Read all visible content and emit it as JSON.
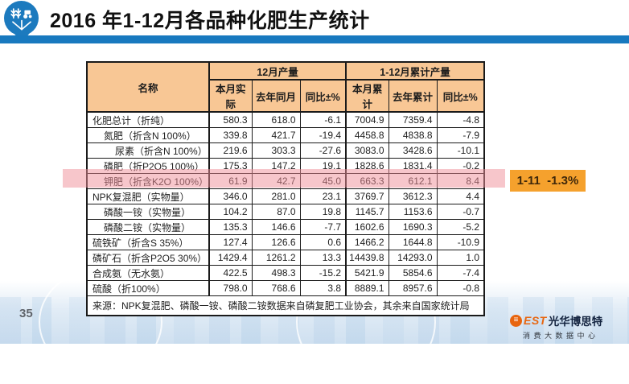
{
  "header": {
    "title": "2016 年1-12月各品种化肥生产统计"
  },
  "icons": {
    "header_logo": "agriculture-pin-icon",
    "footer_logo": "best-ring-icon"
  },
  "colors": {
    "title_bar_blue": "#1879BF",
    "logo_blue": "#1C7ABE",
    "table_header_bg": "#F8C795",
    "highlight_pink": "#F08E98",
    "callout_orange": "#F5A12D",
    "brand_orange": "#E8650F"
  },
  "table": {
    "name_header": "名称",
    "groups": [
      {
        "label": "12月产量"
      },
      {
        "label": "1-12月累计产量"
      }
    ],
    "sub_headers": [
      "本月实际",
      "去年同月",
      "同比±%",
      "本月累计",
      "去年累计",
      "同比±%"
    ],
    "rows": [
      {
        "name": "化肥总计（折纯）",
        "indent": 0,
        "highlight": false,
        "values": [
          "580.3",
          "618.0",
          "-6.1",
          "7004.9",
          "7359.4",
          "-4.8"
        ]
      },
      {
        "name": "氮肥（折含N 100%）",
        "indent": 1,
        "highlight": false,
        "values": [
          "339.8",
          "421.7",
          "-19.4",
          "4458.8",
          "4838.8",
          "-7.9"
        ]
      },
      {
        "name": "尿素（折含N 100%）",
        "indent": 2,
        "highlight": false,
        "values": [
          "219.6",
          "303.3",
          "-27.6",
          "3083.0",
          "3428.6",
          "-10.1"
        ]
      },
      {
        "name": "磷肥（折P2O5 100%）",
        "indent": 1,
        "highlight": false,
        "values": [
          "175.3",
          "147.2",
          "19.1",
          "1828.6",
          "1831.4",
          "-0.2"
        ]
      },
      {
        "name": "钾肥（折含K2O 100%）",
        "indent": 1,
        "highlight": false,
        "values": [
          "61.9",
          "42.7",
          "45.0",
          "663.3",
          "612.1",
          "8.4"
        ]
      },
      {
        "name": "NPK复混肥（实物量）",
        "indent": 0,
        "highlight": true,
        "values": [
          "346.0",
          "281.0",
          "23.1",
          "3769.7",
          "3612.3",
          "4.4"
        ]
      },
      {
        "name": "磷酸一铵（实物量）",
        "indent": 1,
        "highlight": false,
        "values": [
          "104.2",
          "87.0",
          "19.8",
          "1145.7",
          "1153.6",
          "-0.7"
        ]
      },
      {
        "name": "磷酸二铵（实物量）",
        "indent": 1,
        "highlight": false,
        "values": [
          "135.3",
          "146.6",
          "-7.7",
          "1602.6",
          "1690.3",
          "-5.2"
        ]
      },
      {
        "name": "硫铁矿（折含S 35%）",
        "indent": 0,
        "highlight": false,
        "values": [
          "127.4",
          "126.6",
          "0.6",
          "1466.2",
          "1644.8",
          "-10.9"
        ]
      },
      {
        "name": "磷矿石（折含P2O5 30%）",
        "indent": 0,
        "highlight": false,
        "values": [
          "1429.4",
          "1261.2",
          "13.3",
          "14439.8",
          "14293.0",
          "1.0"
        ]
      },
      {
        "name": "合成氨（无水氨）",
        "indent": 0,
        "highlight": false,
        "values": [
          "422.5",
          "498.3",
          "-15.2",
          "5421.9",
          "5854.6",
          "-7.4"
        ]
      },
      {
        "name": "硫酸（折100%）",
        "indent": 0,
        "highlight": false,
        "values": [
          "798.0",
          "768.6",
          "3.8",
          "8889.1",
          "8957.6",
          "-0.8"
        ]
      }
    ],
    "source_note": "来源：NPK复混肥、磷酸一铵、磷酸二铵数据来自磷复肥工业协会，其余来自国家统计局"
  },
  "callout": {
    "label": "1-11  -1.3%"
  },
  "footer": {
    "page_number": "35",
    "logo_est": "EST",
    "logo_brand": "光华博思特",
    "logo_subtitle": "消费大数据中心"
  }
}
